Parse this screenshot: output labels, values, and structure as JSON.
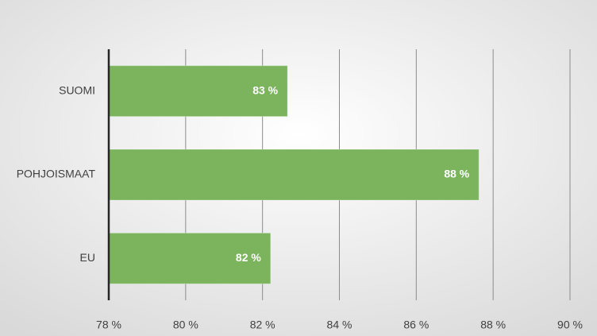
{
  "chart_data": {
    "type": "bar",
    "orientation": "horizontal",
    "categories": [
      "SUOMI",
      "POHJOISMAAT",
      "EU"
    ],
    "values": [
      82.65,
      87.63,
      82.21
    ],
    "value_labels": [
      "83 %",
      "88 %",
      "82 %"
    ],
    "color": "#7cb45e",
    "xlim": [
      78,
      90
    ],
    "xticks": [
      {
        "value": 78,
        "label": "78 %"
      },
      {
        "value": 80,
        "label": "80 %"
      },
      {
        "value": 82,
        "label": "82 %"
      },
      {
        "value": 84,
        "label": "84 %"
      },
      {
        "value": 86,
        "label": "86 %"
      },
      {
        "value": 88,
        "label": "88 %"
      },
      {
        "value": 90,
        "label": "90 %"
      }
    ],
    "grid": true
  }
}
